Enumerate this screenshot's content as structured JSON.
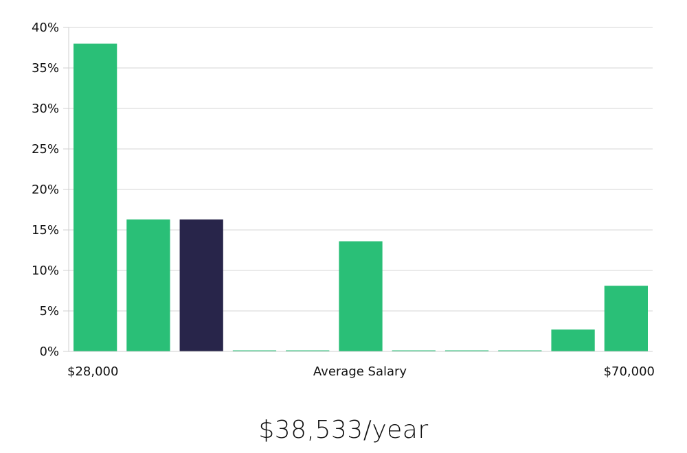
{
  "chart_data": {
    "type": "bar",
    "x_start_label": "$28,000",
    "x_end_label": "$70,000",
    "xlabel": "Average Salary",
    "ylabel": "",
    "ylim": [
      0,
      40
    ],
    "y_ticks": [
      0,
      5,
      10,
      15,
      20,
      25,
      30,
      35,
      40
    ],
    "y_tick_labels": [
      "0%",
      "5%",
      "10%",
      "15%",
      "20%",
      "25%",
      "30%",
      "35%",
      "40%"
    ],
    "grid": true,
    "values": [
      38.0,
      16.3,
      16.3,
      0,
      0,
      13.6,
      0,
      0,
      0,
      2.7,
      8.1
    ],
    "highlight_index": 2,
    "colors": {
      "bar": "#2abf77",
      "highlight": "#28254a",
      "grid": "#e3e3e3",
      "axis": "#cfcfcf"
    }
  },
  "summary": {
    "salary_text": "$38,533/year"
  }
}
